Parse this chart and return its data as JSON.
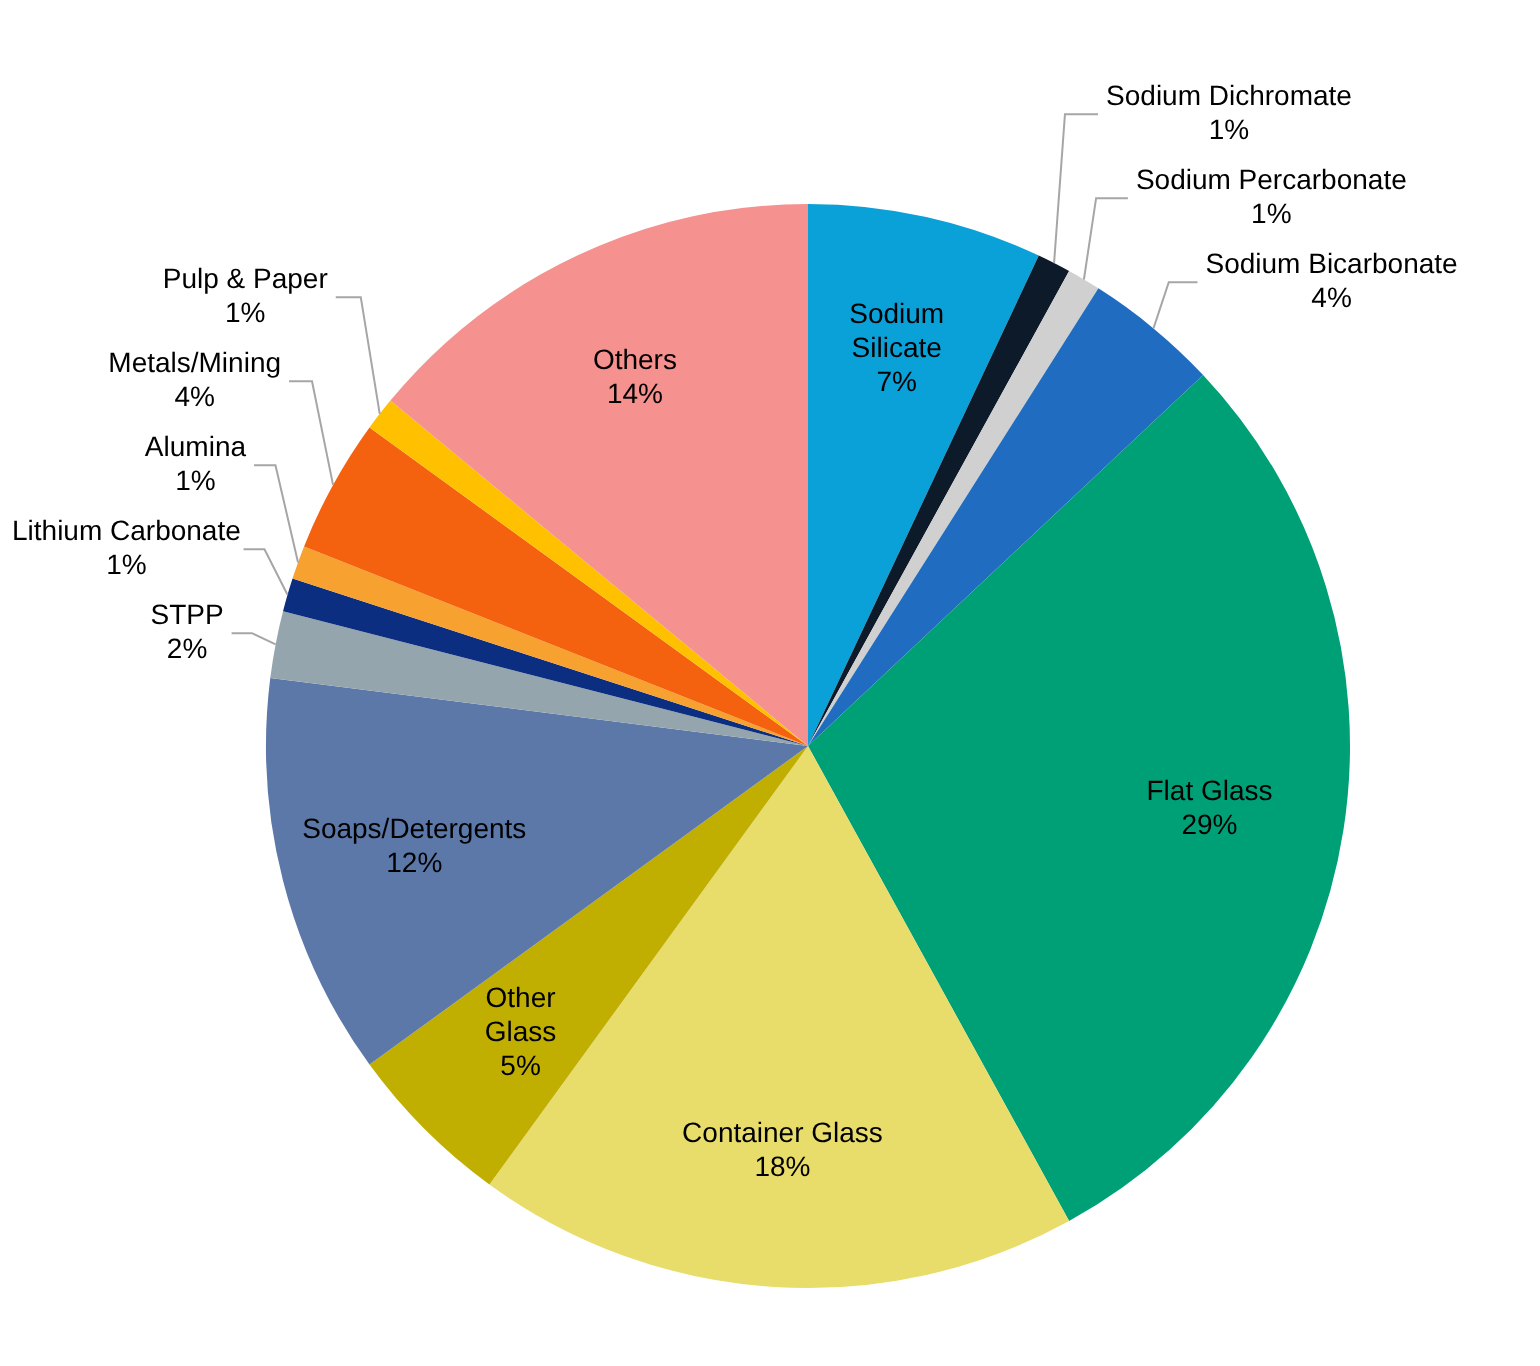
{
  "chart_data": {
    "type": "pie",
    "categories": [
      "Sodium Silicate",
      "Sodium Dichromate",
      "Sodium Percarbonate",
      "Sodium Bicarbonate",
      "Flat Glass",
      "Container Glass",
      "Other Glass",
      "Soaps/Detergents",
      "STPP",
      "Lithium Carbonate",
      "Alumina",
      "Metals/Mining",
      "Pulp & Paper",
      "Others"
    ],
    "values": [
      7,
      1,
      1,
      4,
      29,
      18,
      5,
      12,
      2,
      1,
      1,
      4,
      1,
      14
    ],
    "colors": [
      "#0aa0d8",
      "#0d1a2a",
      "#d0d0d0",
      "#1f6cc0",
      "#00a077",
      "#e8dc6a",
      "#c0ae00",
      "#5b78a8",
      "#95a5ad",
      "#0b2e80",
      "#f7a130",
      "#f5620f",
      "#ffc000",
      "#f5918e"
    ],
    "value_labels": [
      "7%",
      "1%",
      "1%",
      "4%",
      "29%",
      "18%",
      "5%",
      "12%",
      "2%",
      "1%",
      "1%",
      "4%",
      "1%",
      "14%"
    ],
    "legend": false
  }
}
